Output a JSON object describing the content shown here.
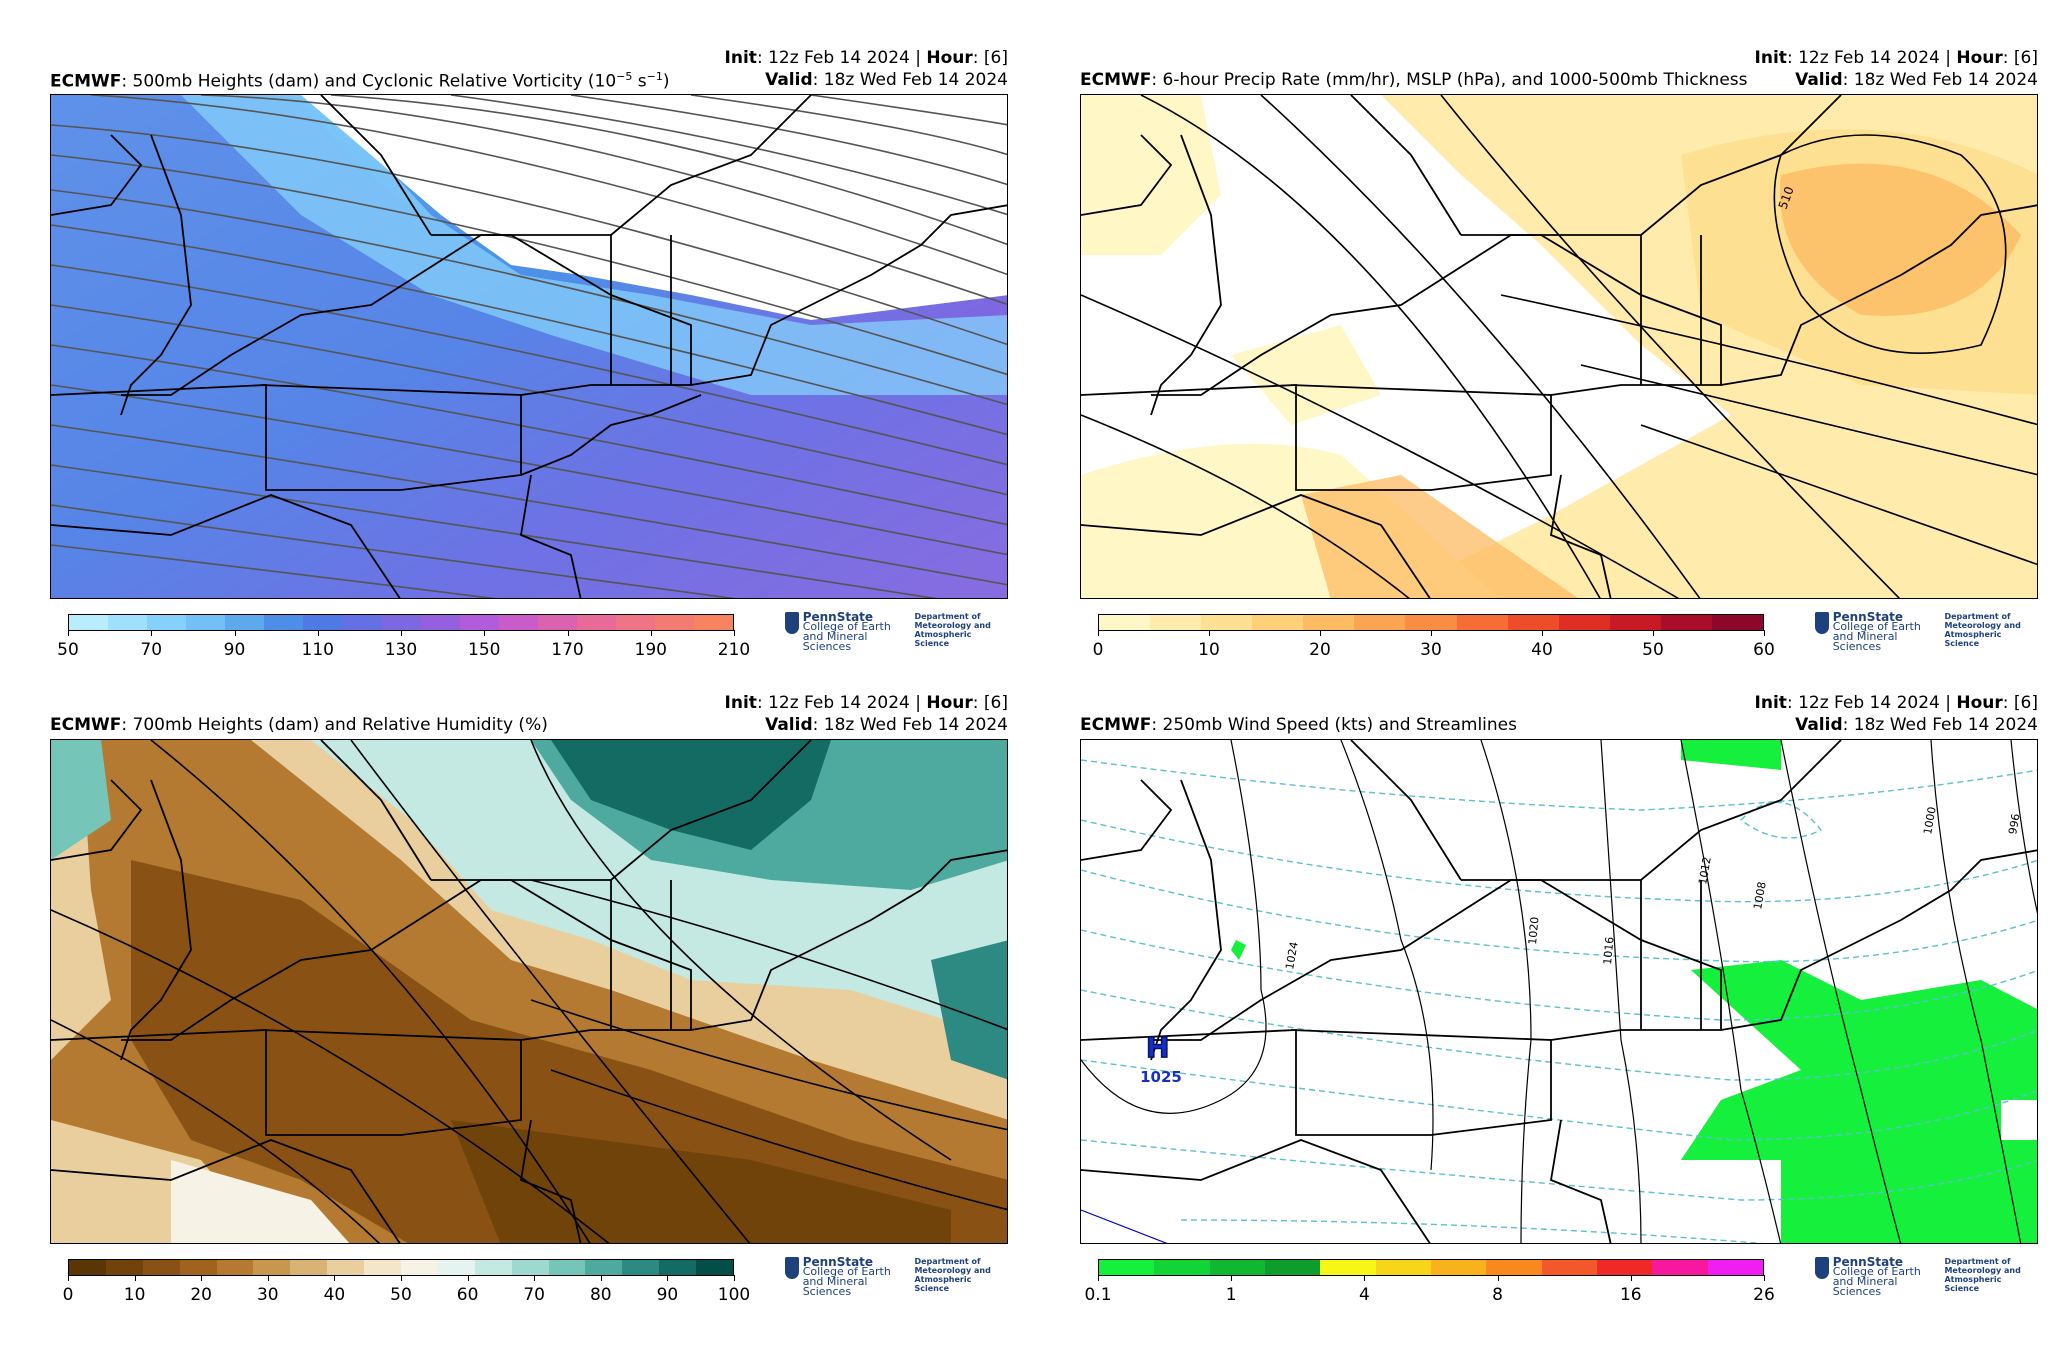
{
  "panels": [
    {
      "model": "ECMWF",
      "title": ": 500mb Heights (dam) and Cyclonic Relative Vorticity (10",
      "title_exp1": "−5",
      "title_mid": " s",
      "title_exp2": "−1",
      "title_end": ")",
      "init_label": "Init",
      "init_value": ": 12z Feb 14 2024 | ",
      "hour_label": "Hour",
      "hour_value": ": [6]",
      "valid_label": "Valid",
      "valid_value": ": 18z Wed Feb 14 2024",
      "colorbar": {
        "colors": [
          "#b8ecff",
          "#9fe0ff",
          "#86d1fb",
          "#72c0f5",
          "#5ea8ee",
          "#4d8ee8",
          "#4f7ae6",
          "#6470e4",
          "#7d68e2",
          "#955fe0",
          "#b05cdc",
          "#c95cc9",
          "#db62b0",
          "#e76a99",
          "#ef7485",
          "#f47b72",
          "#f6845f"
        ],
        "ticks": [
          "50",
          "70",
          "90",
          "110",
          "130",
          "150",
          "170",
          "190",
          "210"
        ]
      }
    },
    {
      "model": "ECMWF",
      "title": ": 6-hour Precip Rate (mm/hr), MSLP (hPa), and 1000-500mb Thickness",
      "init_label": "Init",
      "init_value": ": 12z Feb 14 2024 | ",
      "hour_label": "Hour",
      "hour_value": ": [6]",
      "valid_label": "Valid",
      "valid_value": ": 18z Wed Feb 14 2024",
      "contour_label": "510",
      "colorbar": {
        "colors": [
          "#fff7c6",
          "#ffecad",
          "#fee093",
          "#fed077",
          "#fdbb63",
          "#fca452",
          "#fb8c43",
          "#f66e35",
          "#ee4d2a",
          "#df2e24",
          "#c81a26",
          "#aa0d2a",
          "#8d062b"
        ],
        "ticks": [
          "0",
          "10",
          "20",
          "30",
          "40",
          "50",
          "60"
        ]
      }
    },
    {
      "model": "ECMWF",
      "title": ": 700mb Heights (dam) and Relative Humidity (%)",
      "init_label": "Init",
      "init_value": ": 12z Feb 14 2024 | ",
      "hour_label": "Hour",
      "hour_value": ": [6]",
      "valid_label": "Valid",
      "valid_value": ": 18z Wed Feb 14 2024",
      "colorbar": {
        "colors": [
          "#5a3606",
          "#70430b",
          "#895214",
          "#a0631e",
          "#b47a32",
          "#c7964f",
          "#d9b373",
          "#e9cf9d",
          "#f4e6c8",
          "#f7f2e6",
          "#e6f4f1",
          "#c4e9e2",
          "#9dd9cf",
          "#75c6b9",
          "#4ea99f",
          "#2d8a82",
          "#146b64",
          "#044e48"
        ],
        "ticks": [
          "0",
          "10",
          "20",
          "30",
          "40",
          "50",
          "60",
          "70",
          "80",
          "90",
          "100"
        ]
      }
    },
    {
      "model": "ECMWF",
      "title": ": 250mb Wind Speed (kts) and Streamlines",
      "init_label": "Init",
      "init_value": ": 12z Feb 14 2024 | ",
      "hour_label": "Hour",
      "hour_value": ": [6]",
      "valid_label": "Valid",
      "valid_value": ": 18z Wed Feb 14 2024",
      "high_label": "H",
      "high_value": "1025",
      "isobar_labels": [
        "1024",
        "1020",
        "1016",
        "1012",
        "1008",
        "1000",
        "996"
      ],
      "colorbar": {
        "colors": [
          "#14f03c",
          "#12d436",
          "#10b830",
          "#0e9c2a",
          "#f6f617",
          "#f7d51a",
          "#f8b21c",
          "#f7891f",
          "#f3582a",
          "#ef2828",
          "#f8189e",
          "#f01ef0"
        ],
        "ticks": [
          "0.1",
          "1",
          "4",
          "8",
          "16",
          "26"
        ]
      }
    }
  ],
  "logo": {
    "org": "PennState",
    "college1": "College of Earth",
    "college2": "and Mineral Sciences",
    "dept1": "Department of",
    "dept2": "Meteorology and",
    "dept3": "Atmospheric Science"
  }
}
